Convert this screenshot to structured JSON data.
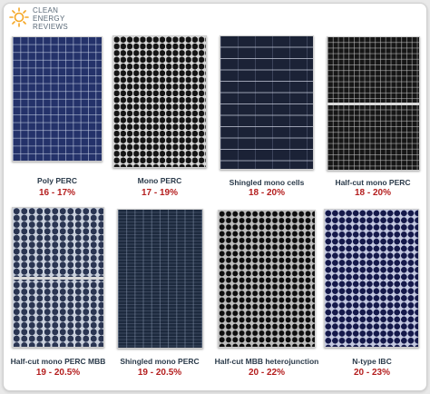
{
  "logo": {
    "lines": [
      "CLEAN",
      "ENERGY",
      "REVIEWS"
    ],
    "icon": "sun-icon",
    "color": "#f5a623"
  },
  "panels": [
    {
      "label": "Poly PERC",
      "efficiency": "16 - 17%"
    },
    {
      "label": "Mono PERC",
      "efficiency": "17 - 19%"
    },
    {
      "label": "Shingled  mono cells",
      "efficiency": "18 - 20%"
    },
    {
      "label": "Half-cut mono PERC",
      "efficiency": "18 - 20%"
    },
    {
      "label": "Half-cut mono PERC MBB",
      "efficiency": "19 - 20.5%"
    },
    {
      "label": "Shingled mono PERC",
      "efficiency": "19 - 20.5%"
    },
    {
      "label": "Half-cut MBB heterojunction",
      "efficiency": "20 - 22%"
    },
    {
      "label": "N-type IBC",
      "efficiency": "20 - 23%"
    }
  ],
  "colors": {
    "label": "#2a3a4a",
    "efficiency": "#b41e1e"
  }
}
